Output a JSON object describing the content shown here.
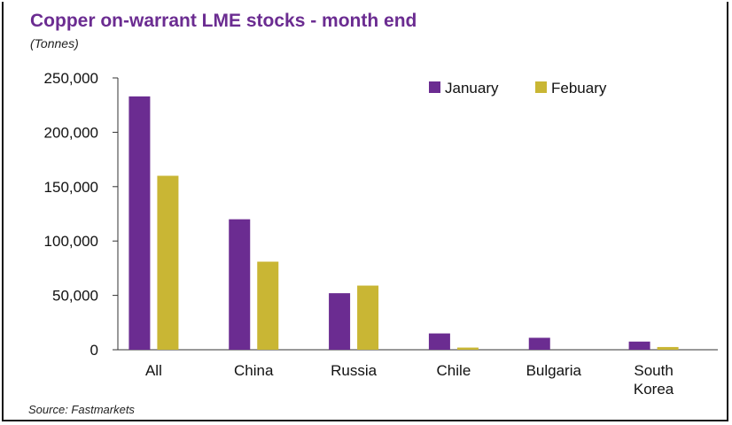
{
  "chart_data": {
    "type": "bar",
    "title": "Copper on-warrant LME stocks - month end",
    "subtitle": "(Tonnes)",
    "source": "Source: Fastmarkets",
    "categories": [
      "All",
      "China",
      "Russia",
      "Chile",
      "Bulgaria",
      "South Korea"
    ],
    "category_lines": [
      [
        "All"
      ],
      [
        "China"
      ],
      [
        "Russia"
      ],
      [
        "Chile"
      ],
      [
        "Bulgaria"
      ],
      [
        "South",
        "Korea"
      ]
    ],
    "series": [
      {
        "name": "January",
        "color": "#6b2c91",
        "values": [
          233000,
          120000,
          52000,
          15000,
          11000,
          7500
        ]
      },
      {
        "name": "Febuary",
        "color": "#c9b634",
        "values": [
          160000,
          81000,
          59000,
          2000,
          0,
          2500
        ]
      }
    ],
    "ylim": [
      0,
      250000
    ],
    "yticks": [
      0,
      50000,
      100000,
      150000,
      200000,
      250000
    ],
    "ytick_labels": [
      "0",
      "50,000",
      "100,000",
      "150,000",
      "200,000",
      "250,000"
    ],
    "grid": false,
    "legend_position": "top-right"
  }
}
